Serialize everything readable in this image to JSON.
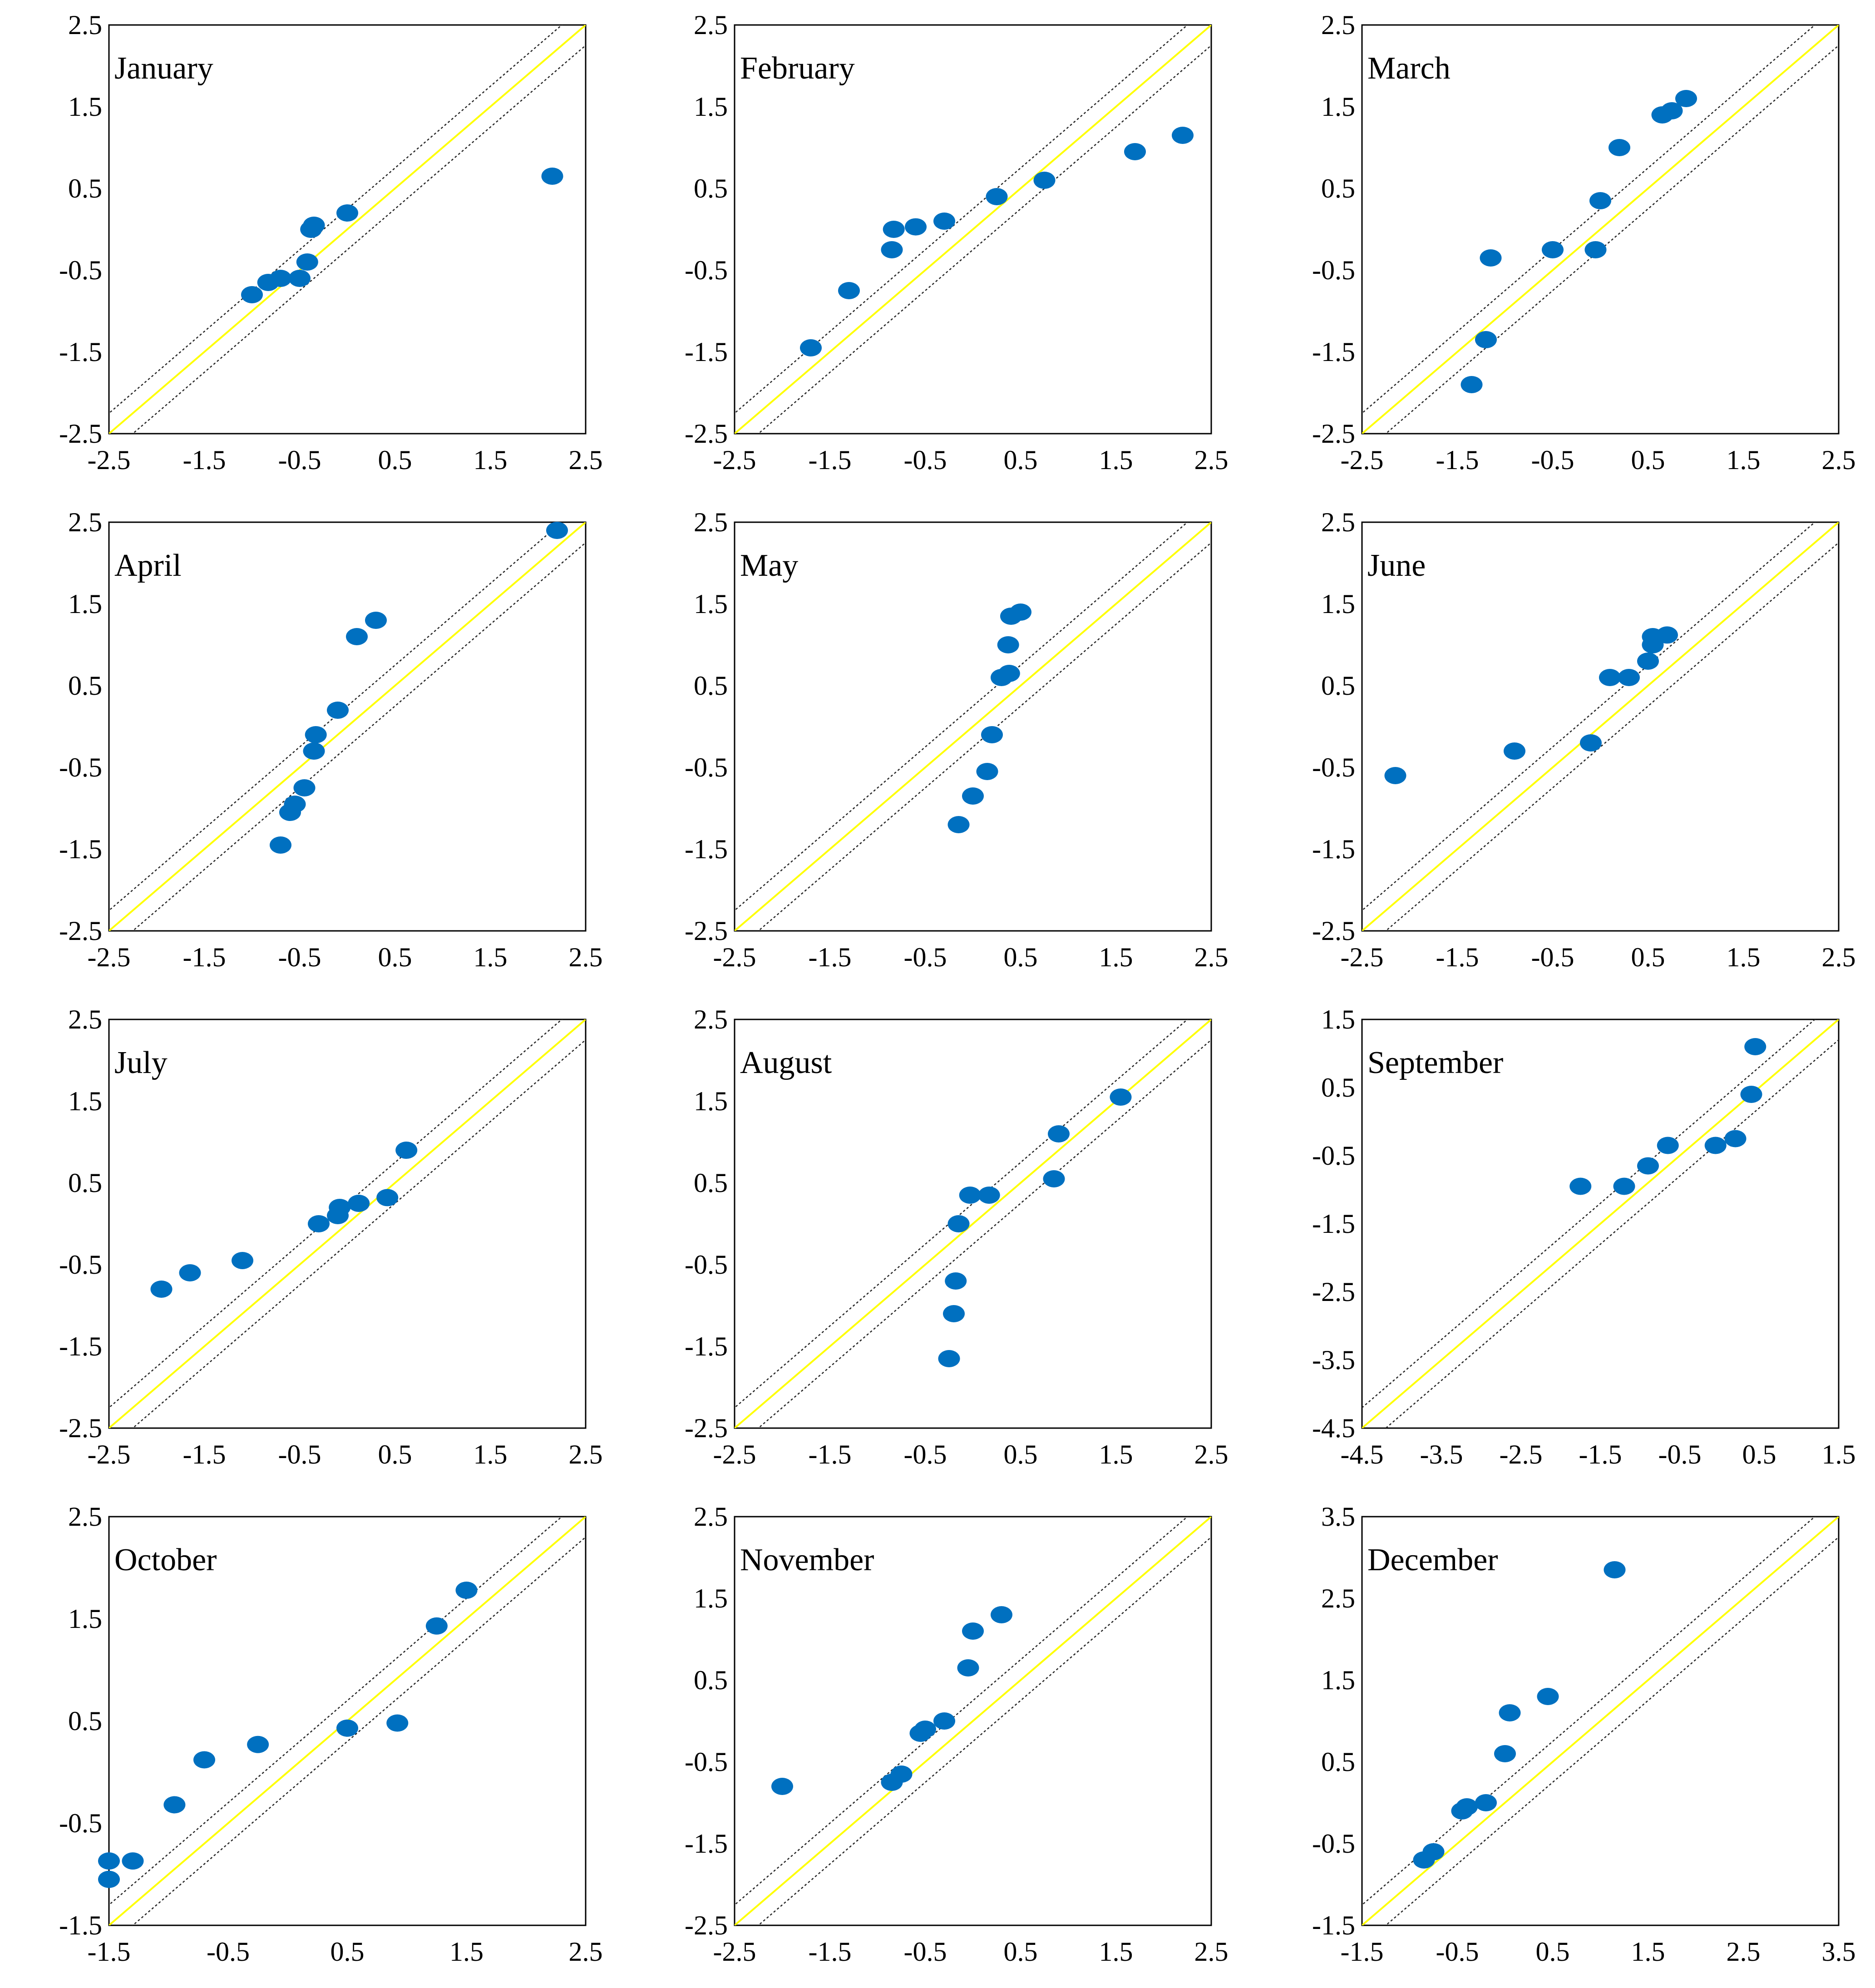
{
  "colors": {
    "point": "#0070C0",
    "identity_line": "#FFFF00",
    "band_line": "#222222",
    "frame": "#000000",
    "background": "#FFFFFF"
  },
  "chart_data": [
    {
      "type": "scatter",
      "title": "January",
      "xlim": [
        -2.5,
        2.5
      ],
      "ylim": [
        -2.5,
        2.5
      ],
      "xticks": [
        "-2.5",
        "-1.5",
        "-0.5",
        "0.5",
        "1.5",
        "2.5"
      ],
      "yticks": [
        "2.5",
        "1.5",
        "0.5",
        "-0.5",
        "-1.5",
        "-2.5"
      ],
      "reference_lines": {
        "identity": true,
        "band_offset": 0.25
      },
      "points": [
        [
          -1.0,
          -0.8
        ],
        [
          -0.83,
          -0.65
        ],
        [
          -0.7,
          -0.6
        ],
        [
          -0.5,
          -0.6
        ],
        [
          -0.42,
          -0.4
        ],
        [
          -0.38,
          0.0
        ],
        [
          -0.35,
          0.05
        ],
        [
          0.0,
          0.2
        ],
        [
          2.15,
          0.65
        ]
      ]
    },
    {
      "type": "scatter",
      "title": "February",
      "xlim": [
        -2.5,
        2.5
      ],
      "ylim": [
        -2.5,
        2.5
      ],
      "xticks": [
        "-2.5",
        "-1.5",
        "-0.5",
        "0.5",
        "1.5",
        "2.5"
      ],
      "yticks": [
        "2.5",
        "1.5",
        "0.5",
        "-0.5",
        "-1.5",
        "-2.5"
      ],
      "reference_lines": {
        "identity": true,
        "band_offset": 0.25
      },
      "points": [
        [
          -1.7,
          -1.45
        ],
        [
          -1.3,
          -0.75
        ],
        [
          -0.85,
          -0.25
        ],
        [
          -0.83,
          0.0
        ],
        [
          -0.6,
          0.03
        ],
        [
          -0.3,
          0.1
        ],
        [
          0.25,
          0.4
        ],
        [
          0.75,
          0.6
        ],
        [
          1.7,
          0.95
        ],
        [
          2.2,
          1.15
        ]
      ]
    },
    {
      "type": "scatter",
      "title": "March",
      "xlim": [
        -2.5,
        2.5
      ],
      "ylim": [
        -2.5,
        2.5
      ],
      "xticks": [
        "-2.5",
        "-1.5",
        "-0.5",
        "0.5",
        "1.5",
        "2.5"
      ],
      "yticks": [
        "2.5",
        "1.5",
        "0.5",
        "-0.5",
        "-1.5",
        "-2.5"
      ],
      "reference_lines": {
        "identity": true,
        "band_offset": 0.25
      },
      "points": [
        [
          -1.35,
          -1.9
        ],
        [
          -1.2,
          -1.35
        ],
        [
          -1.15,
          -0.35
        ],
        [
          -0.5,
          -0.25
        ],
        [
          -0.05,
          -0.25
        ],
        [
          0.0,
          0.35
        ],
        [
          0.2,
          1.0
        ],
        [
          0.65,
          1.4
        ],
        [
          0.75,
          1.45
        ],
        [
          0.9,
          1.6
        ]
      ]
    },
    {
      "type": "scatter",
      "title": "April",
      "xlim": [
        -2.5,
        2.5
      ],
      "ylim": [
        -2.5,
        2.5
      ],
      "xticks": [
        "-2.5",
        "-1.5",
        "-0.5",
        "0.5",
        "1.5",
        "2.5"
      ],
      "yticks": [
        "2.5",
        "1.5",
        "0.5",
        "-0.5",
        "-1.5",
        "-2.5"
      ],
      "reference_lines": {
        "identity": true,
        "band_offset": 0.25
      },
      "points": [
        [
          -0.7,
          -1.45
        ],
        [
          -0.6,
          -1.05
        ],
        [
          -0.55,
          -0.95
        ],
        [
          -0.45,
          -0.75
        ],
        [
          -0.35,
          -0.3
        ],
        [
          -0.33,
          -0.1
        ],
        [
          -0.1,
          0.2
        ],
        [
          0.1,
          1.1
        ],
        [
          0.3,
          1.3
        ],
        [
          2.2,
          2.4
        ]
      ]
    },
    {
      "type": "scatter",
      "title": "May",
      "xlim": [
        -2.5,
        2.5
      ],
      "ylim": [
        -2.5,
        2.5
      ],
      "xticks": [
        "-2.5",
        "-1.5",
        "-0.5",
        "0.5",
        "1.5",
        "2.5"
      ],
      "yticks": [
        "2.5",
        "1.5",
        "0.5",
        "-0.5",
        "-1.5",
        "-2.5"
      ],
      "reference_lines": {
        "identity": true,
        "band_offset": 0.25
      },
      "points": [
        [
          -0.15,
          -1.2
        ],
        [
          0.0,
          -0.85
        ],
        [
          0.15,
          -0.55
        ],
        [
          0.2,
          -0.1
        ],
        [
          0.3,
          0.6
        ],
        [
          0.38,
          0.65
        ],
        [
          0.37,
          1.0
        ],
        [
          0.4,
          1.35
        ],
        [
          0.5,
          1.4
        ]
      ]
    },
    {
      "type": "scatter",
      "title": "June",
      "xlim": [
        -2.5,
        2.5
      ],
      "ylim": [
        -2.5,
        2.5
      ],
      "xticks": [
        "-2.5",
        "-1.5",
        "-0.5",
        "0.5",
        "1.5",
        "2.5"
      ],
      "yticks": [
        "2.5",
        "1.5",
        "0.5",
        "-0.5",
        "-1.5",
        "-2.5"
      ],
      "reference_lines": {
        "identity": true,
        "band_offset": 0.25
      },
      "points": [
        [
          -2.15,
          -0.6
        ],
        [
          -0.9,
          -0.3
        ],
        [
          -0.1,
          -0.2
        ],
        [
          0.1,
          0.6
        ],
        [
          0.3,
          0.6
        ],
        [
          0.5,
          0.8
        ],
        [
          0.55,
          1.0
        ],
        [
          0.55,
          1.1
        ],
        [
          0.7,
          1.12
        ]
      ]
    },
    {
      "type": "scatter",
      "title": "July",
      "xlim": [
        -2.5,
        2.5
      ],
      "ylim": [
        -2.5,
        2.5
      ],
      "xticks": [
        "-2.5",
        "-1.5",
        "-0.5",
        "0.5",
        "1.5",
        "2.5"
      ],
      "yticks": [
        "2.5",
        "1.5",
        "0.5",
        "-0.5",
        "-1.5",
        "-2.5"
      ],
      "reference_lines": {
        "identity": true,
        "band_offset": 0.25
      },
      "points": [
        [
          -1.95,
          -0.8
        ],
        [
          -1.65,
          -0.6
        ],
        [
          -1.1,
          -0.45
        ],
        [
          -0.3,
          0.0
        ],
        [
          -0.1,
          0.1
        ],
        [
          -0.08,
          0.2
        ],
        [
          0.12,
          0.25
        ],
        [
          0.42,
          0.32
        ],
        [
          0.62,
          0.9
        ]
      ]
    },
    {
      "type": "scatter",
      "title": "August",
      "xlim": [
        -2.5,
        2.5
      ],
      "ylim": [
        -2.5,
        2.5
      ],
      "xticks": [
        "-2.5",
        "-1.5",
        "-0.5",
        "0.5",
        "1.5",
        "2.5"
      ],
      "yticks": [
        "2.5",
        "1.5",
        "0.5",
        "-0.5",
        "-1.5",
        "-2.5"
      ],
      "reference_lines": {
        "identity": true,
        "band_offset": 0.25
      },
      "points": [
        [
          -0.25,
          -1.65
        ],
        [
          -0.2,
          -1.1
        ],
        [
          -0.18,
          -0.7
        ],
        [
          -0.15,
          0.0
        ],
        [
          -0.03,
          0.35
        ],
        [
          0.17,
          0.35
        ],
        [
          0.85,
          0.55
        ],
        [
          0.9,
          1.1
        ],
        [
          1.55,
          1.55
        ]
      ]
    },
    {
      "type": "scatter",
      "title": "September",
      "xlim": [
        -4.5,
        1.5
      ],
      "ylim": [
        -4.5,
        1.5
      ],
      "xticks": [
        "-4.5",
        "-3.5",
        "-2.5",
        "-1.5",
        "-0.5",
        "0.5",
        "1.5"
      ],
      "yticks": [
        "1.5",
        "0.5",
        "-0.5",
        "-1.5",
        "-2.5",
        "-3.5",
        "-4.5"
      ],
      "reference_lines": {
        "identity": true,
        "band_offset": 0.3
      },
      "points": [
        [
          -1.75,
          -0.95
        ],
        [
          -1.2,
          -0.95
        ],
        [
          -0.9,
          -0.65
        ],
        [
          -0.65,
          -0.35
        ],
        [
          -0.05,
          -0.35
        ],
        [
          0.2,
          -0.25
        ],
        [
          0.4,
          0.4
        ],
        [
          0.45,
          1.1
        ]
      ]
    },
    {
      "type": "scatter",
      "title": "October",
      "xlim": [
        -1.5,
        2.5
      ],
      "ylim": [
        -1.5,
        2.5
      ],
      "xticks": [
        "-1.5",
        "-0.5",
        "0.5",
        "1.5",
        "2.5"
      ],
      "yticks": [
        "2.5",
        "1.5",
        "0.5",
        "-0.5",
        "-1.5"
      ],
      "reference_lines": {
        "identity": true,
        "band_offset": 0.2
      },
      "points": [
        [
          -1.5,
          -1.05
        ],
        [
          -1.5,
          -0.87
        ],
        [
          -1.3,
          -0.87
        ],
        [
          -0.95,
          -0.32
        ],
        [
          -0.7,
          0.12
        ],
        [
          -0.25,
          0.27
        ],
        [
          0.5,
          0.43
        ],
        [
          0.92,
          0.48
        ],
        [
          1.25,
          1.43
        ],
        [
          1.5,
          1.78
        ]
      ]
    },
    {
      "type": "scatter",
      "title": "November",
      "xlim": [
        -2.5,
        2.5
      ],
      "ylim": [
        -2.5,
        2.5
      ],
      "xticks": [
        "-2.5",
        "-1.5",
        "-0.5",
        "0.5",
        "1.5",
        "2.5"
      ],
      "yticks": [
        "2.5",
        "1.5",
        "0.5",
        "-0.5",
        "-1.5",
        "-2.5"
      ],
      "reference_lines": {
        "identity": true,
        "band_offset": 0.25
      },
      "points": [
        [
          -2.0,
          -0.8
        ],
        [
          -0.85,
          -0.75
        ],
        [
          -0.75,
          -0.65
        ],
        [
          -0.55,
          -0.15
        ],
        [
          -0.5,
          -0.1
        ],
        [
          -0.3,
          0.0
        ],
        [
          -0.05,
          0.65
        ],
        [
          0.0,
          1.1
        ],
        [
          0.3,
          1.3
        ]
      ]
    },
    {
      "type": "scatter",
      "title": "December",
      "xlim": [
        -1.5,
        3.5
      ],
      "ylim": [
        -1.5,
        3.5
      ],
      "xticks": [
        "-1.5",
        "-0.5",
        "0.5",
        "1.5",
        "2.5",
        "3.5"
      ],
      "yticks": [
        "3.5",
        "2.5",
        "1.5",
        "0.5",
        "-0.5",
        "-1.5"
      ],
      "reference_lines": {
        "identity": true,
        "band_offset": 0.25
      },
      "points": [
        [
          -0.85,
          -0.7
        ],
        [
          -0.75,
          -0.6
        ],
        [
          -0.45,
          -0.1
        ],
        [
          -0.4,
          -0.05
        ],
        [
          -0.2,
          0.0
        ],
        [
          0.0,
          0.6
        ],
        [
          0.05,
          1.1
        ],
        [
          0.45,
          1.3
        ],
        [
          1.15,
          2.85
        ]
      ]
    }
  ]
}
